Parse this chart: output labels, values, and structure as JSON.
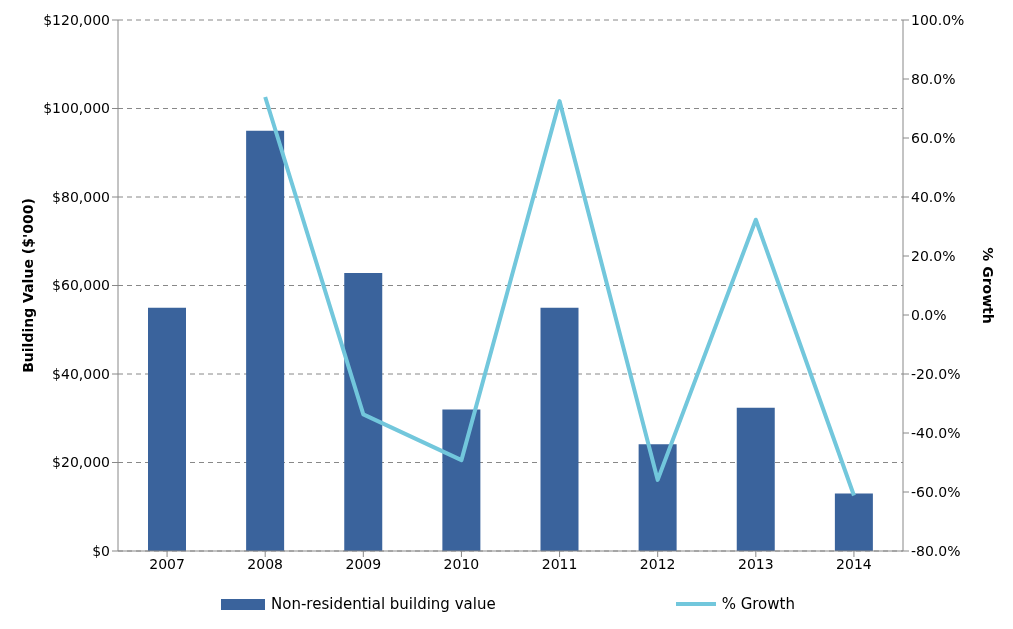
{
  "chart_data": {
    "type": "bar",
    "categories": [
      "2007",
      "2008",
      "2009",
      "2010",
      "2011",
      "2012",
      "2013",
      "2014"
    ],
    "series": [
      {
        "name": "Non-residential building value",
        "color": "#3a639c",
        "values": [
          55000,
          95000,
          62800,
          32000,
          55000,
          24100,
          32400,
          13000
        ]
      },
      {
        "name": "% Growth",
        "type": "line",
        "axis": "y2",
        "color": "#72c7dc",
        "values": [
          null,
          73.9,
          -33.7,
          -49.2,
          72.5,
          -55.9,
          32.3,
          -61.2
        ]
      }
    ],
    "ylabel": "Building Value ($'000)",
    "y2label": "% Growth",
    "ylim": [
      0,
      120000
    ],
    "yticks": [
      {
        "value": 0,
        "label": "$0"
      },
      {
        "value": 20000,
        "label": "$20,000"
      },
      {
        "value": 40000,
        "label": "$40,000"
      },
      {
        "value": 60000,
        "label": "$60,000"
      },
      {
        "value": 80000,
        "label": "$80,000"
      },
      {
        "value": 100000,
        "label": "$100,000"
      },
      {
        "value": 120000,
        "label": "$120,000"
      }
    ],
    "y2lim": [
      -80,
      100
    ],
    "y2ticks": [
      {
        "value": -80,
        "label": "-80.0%"
      },
      {
        "value": -60,
        "label": "-60.0%"
      },
      {
        "value": -40,
        "label": "-40.0%"
      },
      {
        "value": -20,
        "label": "-20.0%"
      },
      {
        "value": 0,
        "label": "0.0%"
      },
      {
        "value": 20,
        "label": "20.0%"
      },
      {
        "value": 40,
        "label": "40.0%"
      },
      {
        "value": 60,
        "label": "60.0%"
      },
      {
        "value": 80,
        "label": "80.0%"
      },
      {
        "value": 100,
        "label": "100.0%"
      }
    ],
    "grid": "y",
    "legend": "bottom",
    "marker": "none",
    "line_style": "solid"
  }
}
